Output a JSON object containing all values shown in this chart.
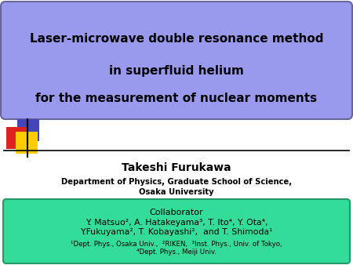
{
  "bg_color": "#ffffff",
  "title_box_color": "#9999ee",
  "title_box_edge": "#666699",
  "title_text_line1": "Laser-microwave double resonance method",
  "title_text_line2": "in superfluid helium",
  "title_text_line3": "for the measurement of nuclear moments",
  "title_text_color": "#000000",
  "author_name": "Takeshi Furukawa",
  "author_dept": "Department of Physics, Graduate School of Science,",
  "author_univ": "Osaka University",
  "collab_box_color": "#33dd99",
  "collab_box_edge": "#229966",
  "collab_title": "Collaborator",
  "collab_line1": "Y. Matsuo², A. Hatakeyama³, T. Ito⁴, Y. Ota⁴,",
  "collab_line2": "Y.Fukuyama², T. Kobayashi²,  and T. Shimoda¹",
  "collab_foot1": "¹Dept. Phys., Osaka Univ.,  ²RIKEN,  ³Inst. Phys., Univ. of Tokyo,",
  "collab_foot2": "⁴Dept. Phys., Meiji Univ.",
  "dec_red": "#dd2222",
  "dec_yellow": "#ffcc00",
  "dec_blue": "#4444bb",
  "line_color": "#000000"
}
